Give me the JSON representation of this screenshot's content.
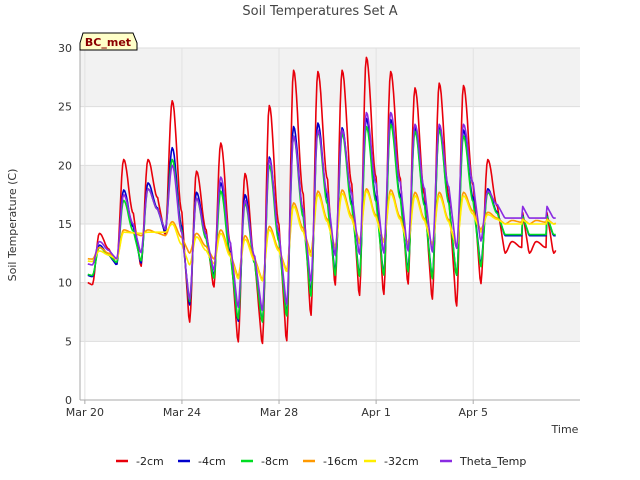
{
  "chart_data": {
    "type": "line",
    "title": "Soil Temperatures Set A",
    "xlabel": "Time",
    "ylabel": "Soil Temperature (C)",
    "badge": "BC_met",
    "x_unit": "days since Mar 20",
    "xlim": [
      -0.2,
      20.4
    ],
    "ylim": [
      0,
      30
    ],
    "yticks": [
      0,
      5,
      10,
      15,
      20,
      25,
      30
    ],
    "xticks": [
      {
        "value": 0,
        "label": "Mar 20"
      },
      {
        "value": 4,
        "label": "Mar 24"
      },
      {
        "value": 8,
        "label": "Mar 28"
      },
      {
        "value": 12,
        "label": "Apr 1"
      },
      {
        "value": 16,
        "label": "Apr 5"
      }
    ],
    "grid": true,
    "legend_position": "bottom",
    "series": [
      {
        "name": "-2cm",
        "color": "#e8000b",
        "daily_min": [
          9.8,
          11.5,
          11.3,
          14.0,
          6.5,
          9.5,
          4.8,
          4.6,
          4.8,
          7.0,
          9.6,
          8.7,
          8.8,
          9.7,
          8.4,
          7.8,
          9.8,
          12.5
        ],
        "daily_max": [
          14.2,
          20.5,
          20.5,
          25.5,
          19.5,
          21.9,
          19.3,
          25.1,
          28.1,
          28.0,
          28.1,
          29.2,
          28.0,
          26.6,
          27.0,
          26.8,
          20.5,
          13.5
        ]
      },
      {
        "name": "-4cm",
        "color": "#0000cc",
        "daily_min": [
          10.5,
          11.5,
          11.6,
          14.2,
          8.0,
          10.5,
          6.6,
          6.5,
          7.2,
          9.0,
          10.8,
          10.5,
          10.6,
          11.0,
          10.3,
          10.5,
          11.5,
          14.0
        ],
        "daily_max": [
          13.2,
          17.9,
          18.5,
          21.5,
          17.7,
          18.5,
          17.5,
          20.7,
          23.3,
          23.6,
          23.2,
          24.0,
          23.9,
          23.2,
          23.3,
          23.0,
          18.0,
          14.0
        ]
      },
      {
        "name": "-8cm",
        "color": "#00dd22",
        "daily_min": [
          10.6,
          11.7,
          11.8,
          14.5,
          8.3,
          10.3,
          6.8,
          6.5,
          7.0,
          8.7,
          10.5,
          10.4,
          10.5,
          10.8,
          10.2,
          10.5,
          11.3,
          14.1
        ],
        "daily_max": [
          13.0,
          17.0,
          18.0,
          20.5,
          17.2,
          17.8,
          16.8,
          20.0,
          22.5,
          22.9,
          22.7,
          23.3,
          23.5,
          22.9,
          23.0,
          22.5,
          17.7,
          14.1
        ]
      },
      {
        "name": "-16cm",
        "color": "#ff9900",
        "daily_min": [
          12.0,
          12.0,
          14.0,
          14.0,
          12.5,
          12.0,
          10.5,
          10.2,
          11.0,
          12.5,
          13.0,
          13.5,
          13.5,
          13.3,
          13.2,
          13.0,
          14.5,
          15.0
        ],
        "daily_max": [
          13.0,
          14.5,
          14.5,
          15.2,
          14.2,
          14.5,
          14.0,
          14.8,
          16.8,
          17.8,
          17.9,
          18.0,
          17.9,
          17.7,
          17.7,
          17.7,
          16.0,
          15.3
        ]
      },
      {
        "name": "-32cm",
        "color": "#ffee00",
        "daily_min": [
          11.8,
          12.0,
          14.2,
          14.3,
          11.5,
          11.6,
          10.3,
          10.1,
          10.9,
          12.2,
          12.9,
          13.3,
          13.4,
          13.2,
          13.2,
          13.0,
          14.3,
          15.0
        ],
        "daily_max": [
          12.7,
          14.3,
          14.3,
          15.0,
          13.9,
          14.2,
          13.7,
          14.5,
          16.5,
          17.5,
          17.6,
          17.8,
          17.6,
          17.4,
          17.4,
          17.4,
          15.8,
          15.0
        ]
      },
      {
        "name": "Theta_Temp",
        "color": "#8a2be2",
        "daily_min": [
          11.5,
          12.0,
          12.5,
          14.5,
          8.5,
          11.0,
          7.8,
          7.5,
          8.0,
          10.0,
          12.2,
          12.3,
          12.4,
          12.6,
          12.5,
          12.8,
          13.5,
          15.5
        ],
        "daily_max": [
          13.5,
          17.5,
          18.0,
          20.0,
          17.2,
          19.0,
          17.0,
          20.5,
          22.5,
          23.0,
          23.0,
          24.5,
          24.5,
          23.5,
          23.5,
          23.5,
          17.8,
          15.5
        ]
      }
    ]
  }
}
